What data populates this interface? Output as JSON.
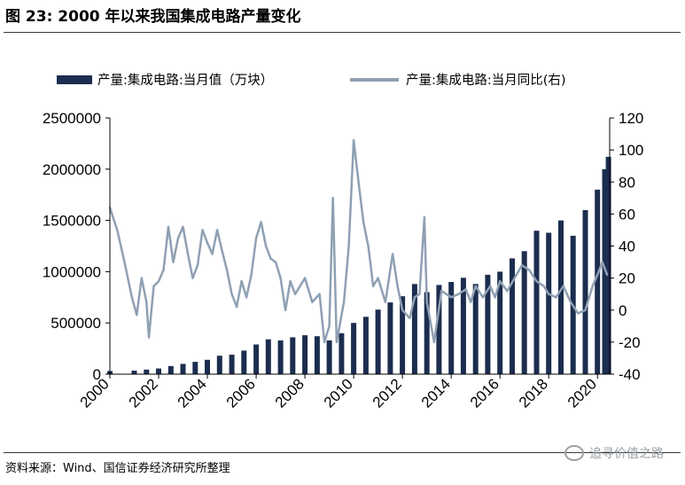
{
  "figure": {
    "title": "图  23:  2000 年以来我国集成电路产量变化",
    "source": "资料来源：Wind、国信证券经济研究所整理",
    "watermark": "追寻价值之路"
  },
  "colors": {
    "bars": "#1c2d4f",
    "line": "#8fa0b3"
  },
  "chart_data": {
    "type": "bar",
    "legend_position": "top",
    "grid": false,
    "x_range": [
      2000,
      2020.5
    ],
    "x_ticks": [
      "2000",
      "2002",
      "2004",
      "2006",
      "2008",
      "2010",
      "2012",
      "2014",
      "2016",
      "2018",
      "2020"
    ],
    "y_left": {
      "range": [
        0,
        2500000
      ],
      "ticks": [
        "0",
        "500000",
        "1000000",
        "1500000",
        "2000000",
        "2500000"
      ]
    },
    "y_right": {
      "range": [
        -40,
        120
      ],
      "ticks": [
        "-40",
        "-20",
        "0",
        "20",
        "40",
        "60",
        "80",
        "100",
        "120"
      ]
    },
    "series": [
      {
        "name": "产量:集成电路:当月值（万块）",
        "type": "bar",
        "axis": "left",
        "points": [
          [
            2000.0,
            30000
          ],
          [
            2001.0,
            35000
          ],
          [
            2001.5,
            45000
          ],
          [
            2002.0,
            55000
          ],
          [
            2002.5,
            80000
          ],
          [
            2003.0,
            100000
          ],
          [
            2003.5,
            120000
          ],
          [
            2004.0,
            140000
          ],
          [
            2004.5,
            180000
          ],
          [
            2005.0,
            190000
          ],
          [
            2005.5,
            230000
          ],
          [
            2006.0,
            290000
          ],
          [
            2006.5,
            340000
          ],
          [
            2007.0,
            330000
          ],
          [
            2007.5,
            360000
          ],
          [
            2008.0,
            380000
          ],
          [
            2008.5,
            370000
          ],
          [
            2009.0,
            330000
          ],
          [
            2009.5,
            400000
          ],
          [
            2010.0,
            500000
          ],
          [
            2010.5,
            560000
          ],
          [
            2011.0,
            630000
          ],
          [
            2011.5,
            700000
          ],
          [
            2012.0,
            760000
          ],
          [
            2012.5,
            880000
          ],
          [
            2013.0,
            800000
          ],
          [
            2013.5,
            870000
          ],
          [
            2014.0,
            900000
          ],
          [
            2014.5,
            940000
          ],
          [
            2015.0,
            880000
          ],
          [
            2015.5,
            970000
          ],
          [
            2016.0,
            1000000
          ],
          [
            2016.5,
            1130000
          ],
          [
            2017.0,
            1200000
          ],
          [
            2017.5,
            1400000
          ],
          [
            2018.0,
            1380000
          ],
          [
            2018.5,
            1500000
          ],
          [
            2019.0,
            1350000
          ],
          [
            2019.5,
            1600000
          ],
          [
            2020.0,
            1800000
          ],
          [
            2020.3,
            2000000
          ],
          [
            2020.45,
            2120000
          ]
        ]
      },
      {
        "name": "产量:集成电路:当月同比(右)",
        "type": "line",
        "axis": "right",
        "points": [
          [
            2000.0,
            64
          ],
          [
            2000.3,
            50
          ],
          [
            2000.6,
            30
          ],
          [
            2000.9,
            8
          ],
          [
            2001.1,
            -3
          ],
          [
            2001.3,
            20
          ],
          [
            2001.5,
            5
          ],
          [
            2001.6,
            -17
          ],
          [
            2001.8,
            15
          ],
          [
            2002.0,
            18
          ],
          [
            2002.2,
            25
          ],
          [
            2002.4,
            52
          ],
          [
            2002.6,
            30
          ],
          [
            2002.8,
            45
          ],
          [
            2003.0,
            52
          ],
          [
            2003.2,
            35
          ],
          [
            2003.4,
            20
          ],
          [
            2003.6,
            28
          ],
          [
            2003.8,
            50
          ],
          [
            2004.0,
            42
          ],
          [
            2004.2,
            35
          ],
          [
            2004.4,
            50
          ],
          [
            2004.6,
            37
          ],
          [
            2004.8,
            25
          ],
          [
            2005.0,
            10
          ],
          [
            2005.2,
            2
          ],
          [
            2005.4,
            18
          ],
          [
            2005.6,
            8
          ],
          [
            2005.8,
            22
          ],
          [
            2006.0,
            45
          ],
          [
            2006.2,
            55
          ],
          [
            2006.4,
            40
          ],
          [
            2006.6,
            32
          ],
          [
            2006.8,
            30
          ],
          [
            2007.0,
            20
          ],
          [
            2007.2,
            0
          ],
          [
            2007.4,
            18
          ],
          [
            2007.6,
            10
          ],
          [
            2007.8,
            15
          ],
          [
            2008.0,
            20
          ],
          [
            2008.3,
            5
          ],
          [
            2008.6,
            10
          ],
          [
            2008.8,
            -20
          ],
          [
            2009.0,
            -10
          ],
          [
            2009.15,
            70
          ],
          [
            2009.3,
            -20
          ],
          [
            2009.6,
            5
          ],
          [
            2009.8,
            40
          ],
          [
            2010.0,
            106
          ],
          [
            2010.2,
            80
          ],
          [
            2010.4,
            55
          ],
          [
            2010.6,
            40
          ],
          [
            2010.8,
            15
          ],
          [
            2011.0,
            20
          ],
          [
            2011.3,
            5
          ],
          [
            2011.6,
            35
          ],
          [
            2011.8,
            15
          ],
          [
            2012.0,
            0
          ],
          [
            2012.3,
            -5
          ],
          [
            2012.5,
            8
          ],
          [
            2012.7,
            10
          ],
          [
            2012.9,
            58
          ],
          [
            2013.0,
            5
          ],
          [
            2013.3,
            -20
          ],
          [
            2013.6,
            12
          ],
          [
            2014.0,
            8
          ],
          [
            2014.3,
            10
          ],
          [
            2014.6,
            13
          ],
          [
            2014.8,
            5
          ],
          [
            2015.0,
            15
          ],
          [
            2015.3,
            8
          ],
          [
            2015.6,
            15
          ],
          [
            2015.8,
            8
          ],
          [
            2016.0,
            18
          ],
          [
            2016.3,
            12
          ],
          [
            2016.6,
            20
          ],
          [
            2016.9,
            28
          ],
          [
            2017.2,
            25
          ],
          [
            2017.5,
            18
          ],
          [
            2017.8,
            15
          ],
          [
            2018.0,
            10
          ],
          [
            2018.3,
            8
          ],
          [
            2018.6,
            15
          ],
          [
            2018.9,
            5
          ],
          [
            2019.2,
            -2
          ],
          [
            2019.5,
            0
          ],
          [
            2019.8,
            15
          ],
          [
            2020.0,
            22
          ],
          [
            2020.2,
            30
          ],
          [
            2020.4,
            22
          ]
        ]
      }
    ]
  }
}
